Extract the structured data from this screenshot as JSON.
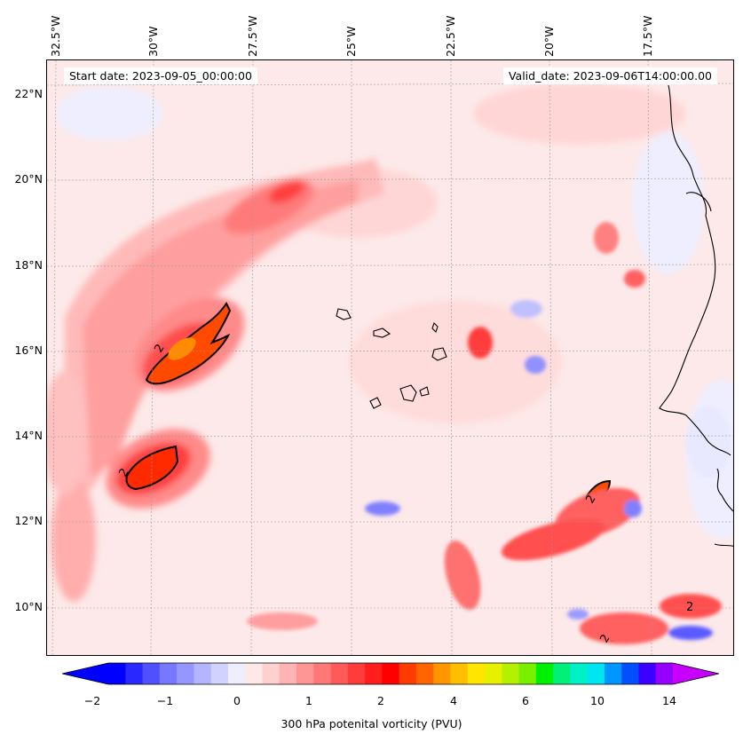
{
  "map": {
    "title_left": "Start date: 2023-09-05_00:00:00",
    "title_right": "Valid_date: 2023-09-06T14:00:00.00",
    "longitude_labels": [
      "32.5°W",
      "30°W",
      "27.5°W",
      "25°W",
      "22.5°W",
      "20°W",
      "17.5°W"
    ],
    "latitude_labels": [
      "22°N",
      "20°N",
      "18°N",
      "16°N",
      "14°N",
      "12°N",
      "10°N"
    ],
    "contour_labels": [
      "2",
      "2",
      "2",
      "2",
      "2"
    ]
  },
  "colorbar": {
    "label": "300 hPa potenital vorticity (PVU)",
    "tick_labels": [
      "−2",
      "−1",
      "0",
      "1",
      "2",
      "4",
      "6",
      "10",
      "14"
    ],
    "colors": [
      "#0000ff",
      "#2828ff",
      "#5050ff",
      "#7878ff",
      "#9696ff",
      "#b4b4ff",
      "#d2d2ff",
      "#eeeeff",
      "#ffe8e8",
      "#ffd0d0",
      "#ffb4b4",
      "#ff9696",
      "#ff7878",
      "#ff5a5a",
      "#ff3c3c",
      "#ff1e1e",
      "#ff0000",
      "#ff3c00",
      "#ff6400",
      "#ff9600",
      "#ffbe00",
      "#ffe600",
      "#e6f000",
      "#b4f000",
      "#78f000",
      "#00f000",
      "#00f078",
      "#00f0c8",
      "#00e6f0",
      "#0096ff",
      "#0050ff",
      "#3c00ff",
      "#9600ff"
    ],
    "over_color": "#c800ff",
    "under_color": "#0000ff"
  }
}
